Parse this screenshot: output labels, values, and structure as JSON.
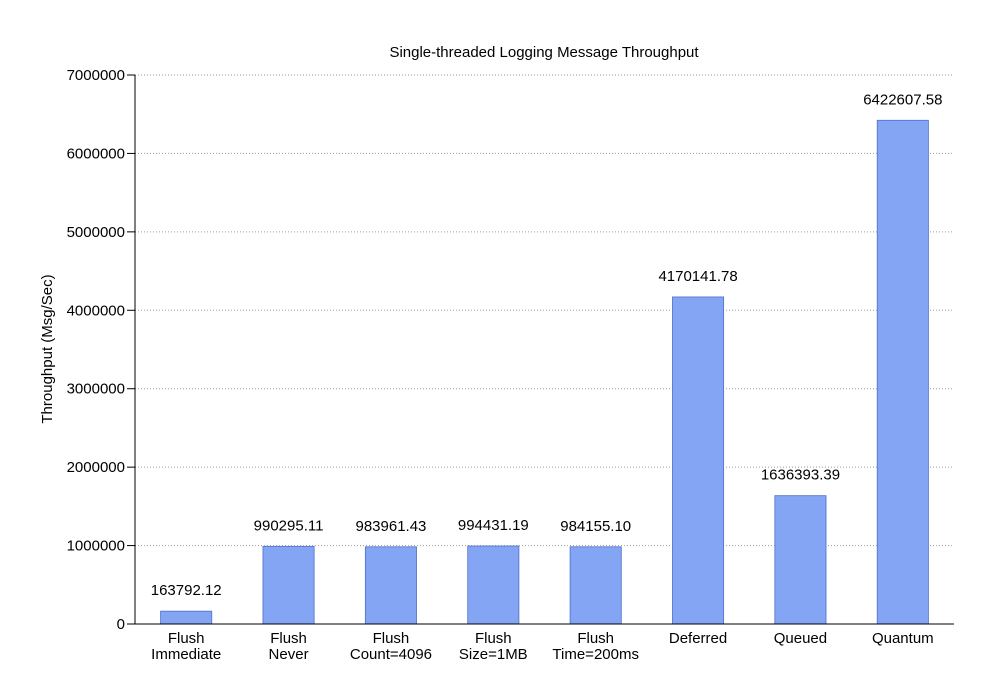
{
  "chart_data": {
    "type": "bar",
    "title": "Single-threaded Logging Message Throughput",
    "xlabel": "",
    "ylabel": "Throughput (Msg/Sec)",
    "ylim": [
      0,
      7000000
    ],
    "yticks": [
      0,
      1000000,
      2000000,
      3000000,
      4000000,
      5000000,
      6000000,
      7000000
    ],
    "ytick_labels": [
      "0",
      "1000000",
      "2000000",
      "3000000",
      "4000000",
      "5000000",
      "6000000",
      "7000000"
    ],
    "grid": true,
    "legend": "none",
    "bar_color": "#84a4f4",
    "bar_edge_color": "#4f6fcc",
    "categories": [
      [
        "Flush",
        "Immediate"
      ],
      [
        "Flush",
        "Never"
      ],
      [
        "Flush",
        "Count=4096"
      ],
      [
        "Flush",
        "Size=1MB"
      ],
      [
        "Flush",
        "Time=200ms"
      ],
      [
        "Deferred"
      ],
      [
        "Queued"
      ],
      [
        "Quantum"
      ]
    ],
    "values": [
      163792.12,
      990295.11,
      983961.43,
      994431.19,
      984155.1,
      4170141.78,
      1636393.39,
      6422607.58
    ],
    "value_labels": [
      "163792.12",
      "990295.11",
      "983961.43",
      "994431.19",
      "984155.10",
      "4170141.78",
      "1636393.39",
      "6422607.58"
    ]
  }
}
